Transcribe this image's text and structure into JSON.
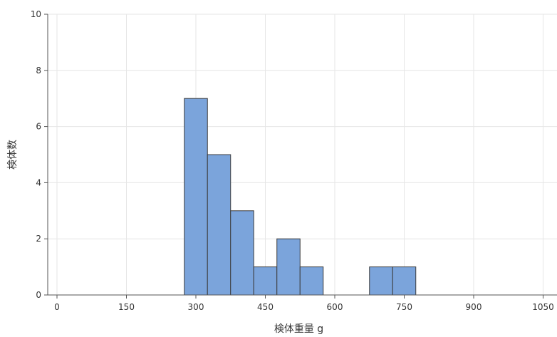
{
  "chart_data": {
    "type": "histogram",
    "title": "",
    "xlabel": "検体重量 g",
    "ylabel": "検体数",
    "xlim": [
      -20,
      1080
    ],
    "ylim": [
      0,
      10
    ],
    "x_ticks": [
      0,
      150,
      300,
      450,
      600,
      750,
      900,
      1050
    ],
    "x_tick_labels": [
      "0",
      "150",
      "300",
      "450",
      "600",
      "750",
      "900",
      "1050"
    ],
    "y_ticks": [
      0,
      2,
      4,
      6,
      8,
      10
    ],
    "y_tick_labels": [
      "0",
      "2",
      "4",
      "6",
      "8",
      "10"
    ],
    "grid": true,
    "bar_color": "#7ba4db",
    "bar_edge_color": "#3c3c3c",
    "bins": [
      {
        "x0": 275,
        "x1": 325,
        "count": 7
      },
      {
        "x0": 325,
        "x1": 375,
        "count": 5
      },
      {
        "x0": 375,
        "x1": 425,
        "count": 3
      },
      {
        "x0": 425,
        "x1": 475,
        "count": 1
      },
      {
        "x0": 475,
        "x1": 525,
        "count": 2
      },
      {
        "x0": 525,
        "x1": 575,
        "count": 1
      },
      {
        "x0": 675,
        "x1": 725,
        "count": 1
      },
      {
        "x0": 725,
        "x1": 775,
        "count": 1
      }
    ]
  }
}
